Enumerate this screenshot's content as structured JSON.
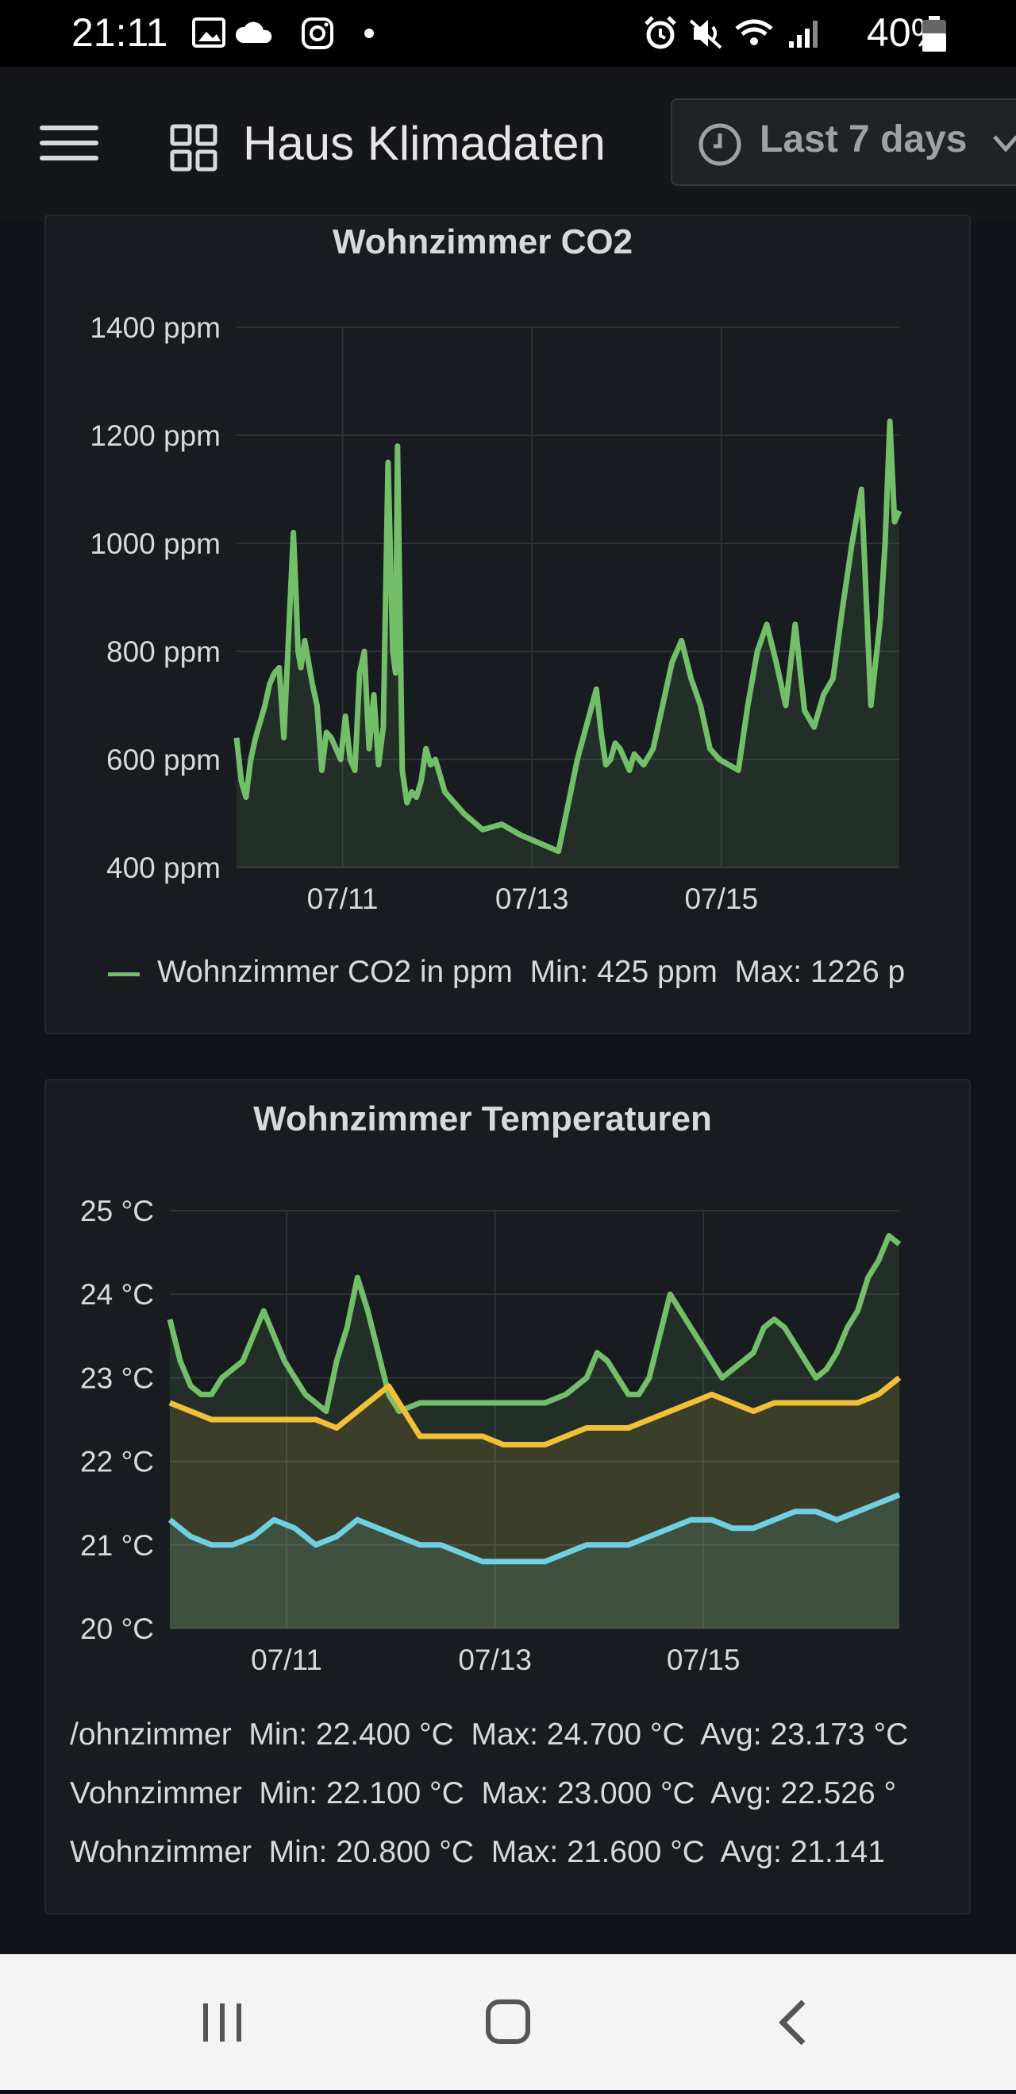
{
  "status_bar": {
    "time": "21:11",
    "battery": "40%",
    "icons_left": [
      "image-icon",
      "cloud-icon",
      "instagram-icon",
      "dot-icon"
    ],
    "icons_right": [
      "alarm-icon",
      "mute-icon",
      "wifi-icon",
      "signal-icon",
      "battery-icon"
    ]
  },
  "header": {
    "menu_icon": "hamburger-menu-icon",
    "dashboard_icon": "dashboard-grid-icon",
    "title": "Haus Klimadaten",
    "time_range": "Last 7 days",
    "time_range_icon": "clock-icon"
  },
  "colors": {
    "background": "#111217",
    "panel": "#181b1f",
    "co2": "#73bf69",
    "temp_series_1": "#73bf69",
    "temp_series_2": "#f2c037",
    "temp_series_3": "#6ed0e0"
  },
  "panels": [
    {
      "title": "Wohnzimmer CO2",
      "legend": "Wohnzimmer CO2 in ppm  Min: 425 ppm  Max: 1226 p"
    },
    {
      "title": "Wohnzimmer Temperaturen",
      "legend": [
        "/ohnzimmer  Min: 22.400 °C  Max: 24.700 °C  Avg: 23.173 °C",
        "Vohnzimmer  Min: 22.100 °C  Max: 23.000 °C  Avg: 22.526 °",
        "Wohnzimmer  Min: 20.800 °C  Max: 21.600 °C  Avg: 21.141"
      ]
    }
  ],
  "chart_data": [
    {
      "type": "area",
      "title": "Wohnzimmer CO2",
      "ylim": [
        400,
        1400
      ],
      "y_ticks": [
        "1400 ppm",
        "1200 ppm",
        "1000 ppm",
        "800 ppm",
        "600 ppm",
        "400 ppm"
      ],
      "x_ticks": [
        "07/11",
        "07/13",
        "07/15"
      ],
      "x_tick_pos": [
        1.12,
        3.12,
        5.12
      ],
      "xlim": [
        0,
        7
      ],
      "series": [
        {
          "name": "Wohnzimmer CO2 in ppm",
          "color": "#73bf69",
          "x": [
            0,
            0.05,
            0.1,
            0.15,
            0.2,
            0.3,
            0.35,
            0.4,
            0.45,
            0.5,
            0.55,
            0.6,
            0.63,
            0.65,
            0.68,
            0.72,
            0.76,
            0.8,
            0.85,
            0.9,
            0.95,
            1.0,
            1.05,
            1.1,
            1.15,
            1.2,
            1.25,
            1.3,
            1.35,
            1.4,
            1.45,
            1.5,
            1.55,
            1.6,
            1.65,
            1.68,
            1.7,
            1.75,
            1.8,
            1.85,
            1.9,
            1.95,
            2.0,
            2.05,
            2.1,
            2.15,
            2.2,
            2.4,
            2.6,
            2.8,
            3.0,
            3.2,
            3.4,
            3.6,
            3.8,
            3.85,
            3.9,
            3.95,
            4.0,
            4.05,
            4.1,
            4.15,
            4.2,
            4.3,
            4.4,
            4.5,
            4.6,
            4.7,
            4.8,
            4.9,
            5.0,
            5.1,
            5.2,
            5.3,
            5.4,
            5.5,
            5.6,
            5.7,
            5.8,
            5.9,
            6.0,
            6.1,
            6.2,
            6.3,
            6.4,
            6.5,
            6.6,
            6.7,
            6.8,
            6.85,
            6.9,
            6.95,
            7.0
          ],
          "values": [
            640,
            560,
            530,
            600,
            640,
            700,
            740,
            760,
            770,
            640,
            830,
            1020,
            900,
            800,
            770,
            820,
            780,
            740,
            700,
            580,
            650,
            640,
            620,
            600,
            680,
            600,
            580,
            760,
            800,
            620,
            720,
            590,
            660,
            1150,
            800,
            760,
            1180,
            580,
            520,
            540,
            530,
            560,
            620,
            590,
            600,
            570,
            540,
            500,
            470,
            480,
            460,
            445,
            430,
            600,
            730,
            650,
            590,
            600,
            630,
            620,
            600,
            580,
            610,
            590,
            620,
            700,
            780,
            820,
            750,
            700,
            620,
            600,
            590,
            580,
            700,
            800,
            850,
            780,
            700,
            850,
            690,
            660,
            720,
            750,
            880,
            1000,
            1100,
            700,
            860,
            1000,
            1226,
            1040,
            1060
          ]
        }
      ]
    },
    {
      "type": "area",
      "title": "Wohnzimmer Temperaturen",
      "ylim": [
        20,
        25
      ],
      "y_ticks": [
        "25 °C",
        "24 °C",
        "23 °C",
        "22 °C",
        "21 °C",
        "20 °C"
      ],
      "x_ticks": [
        "07/11",
        "07/13",
        "07/15"
      ],
      "x_tick_pos": [
        1.12,
        3.12,
        5.12
      ],
      "xlim": [
        0,
        7
      ],
      "series": [
        {
          "name": "Wohnzimmer",
          "color": "#73bf69",
          "x": [
            0,
            0.1,
            0.2,
            0.3,
            0.4,
            0.5,
            0.6,
            0.7,
            0.8,
            0.9,
            1.0,
            1.1,
            1.2,
            1.3,
            1.4,
            1.5,
            1.6,
            1.7,
            1.8,
            1.9,
            2.0,
            2.1,
            2.2,
            2.4,
            2.6,
            2.8,
            3.0,
            3.2,
            3.4,
            3.6,
            3.8,
            4.0,
            4.1,
            4.2,
            4.3,
            4.4,
            4.5,
            4.6,
            4.7,
            4.8,
            4.9,
            5.0,
            5.1,
            5.2,
            5.3,
            5.4,
            5.5,
            5.6,
            5.7,
            5.8,
            5.9,
            6.0,
            6.1,
            6.2,
            6.3,
            6.4,
            6.5,
            6.6,
            6.7,
            6.8,
            6.9,
            7.0
          ],
          "values": [
            23.7,
            23.2,
            22.9,
            22.8,
            22.8,
            23.0,
            23.1,
            23.2,
            23.5,
            23.8,
            23.5,
            23.2,
            23.0,
            22.8,
            22.7,
            22.6,
            23.2,
            23.6,
            24.2,
            23.8,
            23.3,
            22.8,
            22.6,
            22.7,
            22.7,
            22.7,
            22.7,
            22.7,
            22.7,
            22.7,
            22.8,
            23.0,
            23.3,
            23.2,
            23.0,
            22.8,
            22.8,
            23.0,
            23.5,
            24.0,
            23.8,
            23.6,
            23.4,
            23.2,
            23.0,
            23.1,
            23.2,
            23.3,
            23.6,
            23.7,
            23.6,
            23.4,
            23.2,
            23.0,
            23.1,
            23.3,
            23.6,
            23.8,
            24.2,
            24.4,
            24.7,
            24.6
          ]
        },
        {
          "name": "Wohnzimmer",
          "color": "#f2c037",
          "x": [
            0,
            0.2,
            0.4,
            0.6,
            0.8,
            1.0,
            1.2,
            1.4,
            1.6,
            1.8,
            2.0,
            2.1,
            2.2,
            2.4,
            2.6,
            2.8,
            3.0,
            3.2,
            3.4,
            3.6,
            3.8,
            4.0,
            4.2,
            4.4,
            4.6,
            4.8,
            5.0,
            5.2,
            5.4,
            5.6,
            5.8,
            6.0,
            6.2,
            6.4,
            6.6,
            6.8,
            7.0
          ],
          "values": [
            22.7,
            22.6,
            22.5,
            22.5,
            22.5,
            22.5,
            22.5,
            22.5,
            22.4,
            22.6,
            22.8,
            22.9,
            22.7,
            22.3,
            22.3,
            22.3,
            22.3,
            22.2,
            22.2,
            22.2,
            22.3,
            22.4,
            22.4,
            22.4,
            22.5,
            22.6,
            22.7,
            22.8,
            22.7,
            22.6,
            22.7,
            22.7,
            22.7,
            22.7,
            22.7,
            22.8,
            23.0
          ]
        },
        {
          "name": "Wohnzimmer",
          "color": "#6ed0e0",
          "x": [
            0,
            0.2,
            0.4,
            0.6,
            0.8,
            1.0,
            1.2,
            1.4,
            1.6,
            1.8,
            2.0,
            2.2,
            2.4,
            2.6,
            2.8,
            3.0,
            3.2,
            3.4,
            3.6,
            3.8,
            4.0,
            4.2,
            4.4,
            4.6,
            4.8,
            5.0,
            5.2,
            5.4,
            5.6,
            5.8,
            6.0,
            6.2,
            6.4,
            6.6,
            6.8,
            7.0
          ],
          "values": [
            21.3,
            21.1,
            21.0,
            21.0,
            21.1,
            21.3,
            21.2,
            21.0,
            21.1,
            21.3,
            21.2,
            21.1,
            21.0,
            21.0,
            20.9,
            20.8,
            20.8,
            20.8,
            20.8,
            20.9,
            21.0,
            21.0,
            21.0,
            21.1,
            21.2,
            21.3,
            21.3,
            21.2,
            21.2,
            21.3,
            21.4,
            21.4,
            21.3,
            21.4,
            21.5,
            21.6
          ]
        }
      ]
    }
  ],
  "nav_bar": {
    "buttons": [
      "recent-apps-icon",
      "home-icon",
      "back-icon"
    ]
  }
}
